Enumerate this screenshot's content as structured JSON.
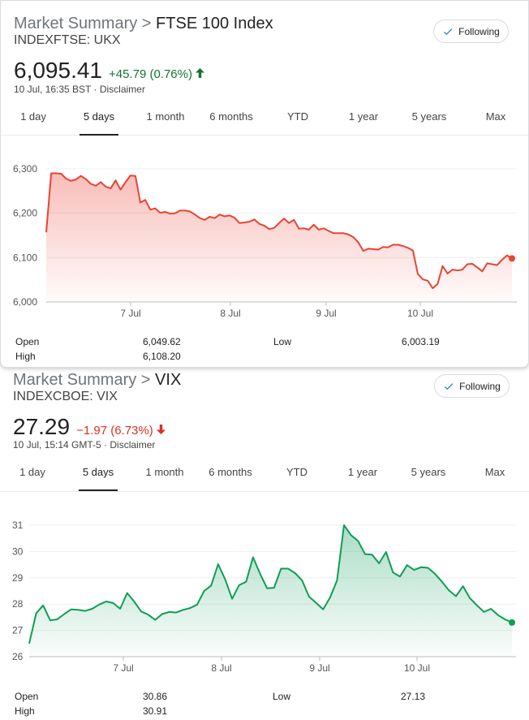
{
  "ftse": {
    "title_prefix": "Market Summary",
    "separator": " > ",
    "title_name": "FTSE 100 Index",
    "ticker": "INDEXFTSE: UKX",
    "follow_label": "Following",
    "price": "6,095.41",
    "change": "+45.79 (0.76%)",
    "direction_arrow": "🡑",
    "timestamp": "10 Jul, 16:35 BST · Disclaimer",
    "tabs": [
      "1 day",
      "5 days",
      "1 month",
      "6 months",
      "YTD",
      "1 year",
      "5 years",
      "Max"
    ],
    "active_tab": "5 days",
    "stats": {
      "open_label": "Open",
      "open_value": "6,049.62",
      "high_label": "High",
      "high_value": "6,108.20",
      "low_label": "Low",
      "low_value": "6,003.19"
    },
    "colors": {
      "line": "#ea4335",
      "change": "#137333"
    }
  },
  "vix": {
    "title_prefix": "Market Summary",
    "separator": " > ",
    "title_name": "VIX",
    "ticker": "INDEXCBOE: VIX",
    "follow_label": "Following",
    "price": "27.29",
    "change": "−1.97 (6.73%)",
    "direction_arrow": "🡓",
    "timestamp": "10 Jul, 15:14 GMT-5 · Disclaimer",
    "tabs": [
      "1 day",
      "5 days",
      "1 month",
      "6 months",
      "YTD",
      "1 year",
      "5 years",
      "Max"
    ],
    "active_tab": "5 days",
    "stats": {
      "open_label": "Open",
      "open_value": "30.86",
      "high_label": "High",
      "high_value": "30.91",
      "low_label": "Low",
      "low_value": "27.13"
    },
    "colors": {
      "line": "#0f9d58",
      "change": "#d93025"
    }
  },
  "chart_data": [
    {
      "type": "line",
      "ylim": [
        6000,
        6300
      ],
      "yticks": [
        "6,000",
        "6,100",
        "6,200",
        "6,300"
      ],
      "xticks": [
        "7 Jul",
        "8 Jul",
        "9 Jul",
        "10 Jul"
      ],
      "series": [
        {
          "values": [
            6157,
            6290,
            6290,
            6289,
            6278,
            6273,
            6276,
            6284,
            6277,
            6266,
            6262,
            6270,
            6260,
            6256,
            6274,
            6253,
            6270,
            6285,
            6284,
            6224,
            6230,
            6208,
            6211,
            6201,
            6203,
            6199,
            6200,
            6206,
            6206,
            6204,
            6197,
            6189,
            6185,
            6192,
            6189,
            6197,
            6193,
            6195,
            6190,
            6178,
            6179,
            6181,
            6186,
            6176,
            6172,
            6164,
            6167,
            6178,
            6188,
            6178,
            6185,
            6165,
            6166,
            6163,
            6174,
            6163,
            6166,
            6160,
            6155,
            6155,
            6155,
            6152,
            6146,
            6134,
            6115,
            6120,
            6119,
            6118,
            6124,
            6123,
            6129,
            6129,
            6126,
            6122,
            6116,
            6063,
            6051,
            6048,
            6031,
            6041,
            6081,
            6064,
            6073,
            6071,
            6073,
            6085,
            6086,
            6078,
            6069,
            6087,
            6085,
            6083,
            6095,
            6105,
            6098
          ]
        }
      ]
    },
    {
      "type": "line",
      "ylim": [
        26,
        31
      ],
      "yticks": [
        "26",
        "27",
        "28",
        "29",
        "30",
        "31"
      ],
      "xticks": [
        "7 Jul",
        "8 Jul",
        "9 Jul",
        "10 Jul"
      ],
      "series": [
        {
          "values": [
            26.5,
            27.65,
            27.95,
            27.38,
            27.42,
            27.62,
            27.8,
            27.78,
            27.74,
            27.82,
            27.98,
            28.1,
            28.04,
            27.82,
            28.42,
            28.1,
            27.72,
            27.6,
            27.4,
            27.62,
            27.7,
            27.68,
            27.78,
            27.85,
            27.98,
            28.5,
            28.7,
            29.52,
            28.95,
            28.2,
            28.72,
            28.85,
            29.78,
            29.15,
            28.6,
            28.62,
            29.35,
            29.35,
            29.18,
            28.9,
            28.28,
            28.05,
            27.8,
            28.25,
            28.9,
            31.0,
            30.62,
            30.4,
            29.9,
            29.88,
            29.55,
            29.98,
            29.2,
            29.05,
            29.48,
            29.3,
            29.4,
            29.38,
            29.15,
            28.85,
            28.52,
            28.3,
            28.68,
            28.22,
            27.95,
            27.7,
            27.82,
            27.58,
            27.42,
            27.3
          ]
        }
      ]
    }
  ]
}
